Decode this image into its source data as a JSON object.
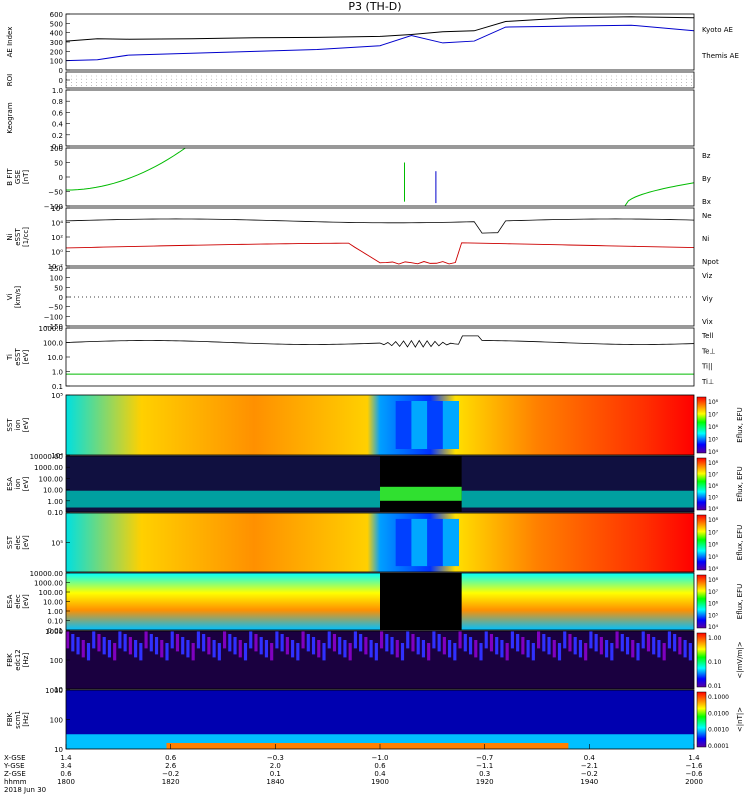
{
  "title": "P3 (TH-D)",
  "chart_data": [
    {
      "id": "ae",
      "type": "line",
      "ylabel": "AE Index",
      "ylim": [
        0,
        600
      ],
      "yticks": [
        "0",
        "100",
        "200",
        "300",
        "400",
        "500",
        "600"
      ],
      "series": [
        {
          "name": "Kyoto AE",
          "color": "#000000",
          "t": [
            0,
            0.05,
            0.1,
            0.2,
            0.3,
            0.4,
            0.5,
            0.55,
            0.6,
            0.65,
            0.7,
            0.8,
            0.9,
            1.0
          ],
          "values": [
            310,
            335,
            330,
            335,
            345,
            350,
            360,
            380,
            410,
            420,
            520,
            560,
            570,
            560
          ]
        },
        {
          "name": "Themis AE",
          "color": "#0000cc",
          "t": [
            0,
            0.05,
            0.1,
            0.2,
            0.3,
            0.4,
            0.5,
            0.55,
            0.6,
            0.65,
            0.7,
            0.8,
            0.9,
            1.0
          ],
          "values": [
            100,
            110,
            160,
            180,
            200,
            220,
            260,
            370,
            290,
            310,
            460,
            470,
            480,
            420
          ]
        }
      ]
    },
    {
      "id": "roi",
      "type": "line",
      "ylabel": "ROI",
      "yticks": [
        "0"
      ]
    },
    {
      "id": "keogram",
      "type": "line",
      "ylabel": "Keogram",
      "ylim": [
        0,
        1
      ],
      "yticks": [
        "0.0",
        "0.2",
        "0.4",
        "0.6",
        "0.8",
        "1.0"
      ]
    },
    {
      "id": "bfield",
      "type": "line",
      "ylabel": [
        "B FIT",
        "GSE",
        "[nT]"
      ],
      "ylim": [
        -100,
        100
      ],
      "yticks": [
        "−100",
        "−50",
        "0",
        "50",
        "100"
      ],
      "legend": [
        {
          "name": "Bz",
          "color": "#cc0000"
        },
        {
          "name": "By",
          "color": "#00bb00"
        },
        {
          "name": "Bx",
          "color": "#0000cc"
        }
      ]
    },
    {
      "id": "density",
      "type": "line",
      "ylabel": [
        "Ni",
        "eSST",
        "[1/cc]"
      ],
      "yticks": [
        "10⁻²",
        "10⁰",
        "10²",
        "10⁴",
        "10⁶"
      ],
      "legend": [
        {
          "name": "Ne",
          "color": "#cc0000"
        },
        {
          "name": "Ni",
          "color": "#000000"
        },
        {
          "name": "Npot",
          "color": "#0000cc"
        }
      ]
    },
    {
      "id": "velocity",
      "type": "line",
      "ylabel": [
        "Vi",
        "[km/s]"
      ],
      "ylim": [
        -150,
        150
      ],
      "yticks": [
        "−150",
        "−100",
        "−50",
        "0",
        "50",
        "100",
        "150"
      ],
      "legend": [
        {
          "name": "Viz",
          "color": "#cc0000"
        },
        {
          "name": "Viy",
          "color": "#00bb00"
        },
        {
          "name": "Vix",
          "color": "#0000cc"
        }
      ]
    },
    {
      "id": "temperature",
      "type": "line",
      "ylabel": [
        "Ti",
        "eSST",
        "[eV]"
      ],
      "yticks": [
        "0.1",
        "1.0",
        "10.0",
        "100.0",
        "1000.0"
      ],
      "legend": [
        {
          "name": "Tell",
          "color": "#000000"
        },
        {
          "name": "Te⊥",
          "color": "#cc0000"
        },
        {
          "name": "Ti||",
          "color": "#00bb00"
        },
        {
          "name": "Ti⊥",
          "color": "#0000cc"
        }
      ]
    },
    {
      "id": "ion_sst",
      "type": "heatmap",
      "ylabel": [
        "SST",
        "ion",
        "[eV]"
      ],
      "yticks": [
        "10⁴",
        "10⁵"
      ],
      "colorbar": {
        "label": "Eflux, EFU",
        "ticks": [
          "10⁴",
          "10⁵",
          "10⁶",
          "10⁷",
          "10⁸"
        ]
      }
    },
    {
      "id": "ion_esa",
      "type": "heatmap",
      "ylabel": [
        "ESA",
        "ion",
        "[eV]"
      ],
      "yticks": [
        "0.10",
        "1.00",
        "10.00",
        "100.00",
        "1000.00",
        "10000.00"
      ],
      "colorbar": {
        "label": "Eflux, EFU",
        "ticks": [
          "10⁴",
          "10⁵",
          "10⁶",
          "10⁷",
          "10⁸"
        ]
      }
    },
    {
      "id": "elec_sst",
      "type": "heatmap",
      "ylabel": [
        "SST",
        "elec",
        "[eV]"
      ],
      "yticks": [
        "10⁵"
      ],
      "colorbar": {
        "label": "Eflux, EFU",
        "ticks": [
          "10⁴",
          "10⁵",
          "10⁶",
          "10⁷",
          "10⁸"
        ]
      }
    },
    {
      "id": "elec_esa",
      "type": "heatmap",
      "ylabel": [
        "ESA",
        "elec",
        "[eV]"
      ],
      "yticks": [
        "0.01",
        "0.10",
        "1.00",
        "10.00",
        "100.00",
        "1000.00",
        "10000.00"
      ],
      "colorbar": {
        "label": "Eflux, EFU",
        "ticks": [
          "10⁴",
          "10⁵",
          "10⁶",
          "10⁷",
          "10⁸"
        ]
      }
    },
    {
      "id": "fbk_e",
      "type": "heatmap",
      "ylabel": [
        "FBK",
        "edc12",
        "[Hz]"
      ],
      "yticks": [
        "10",
        "100",
        "1000"
      ],
      "colorbar": {
        "label": "<|mV/m|>",
        "ticks": [
          "0.01",
          "0.10",
          "1.00"
        ]
      }
    },
    {
      "id": "fbk_b",
      "type": "heatmap",
      "ylabel": [
        "FBK",
        "scm1",
        "[Hz]"
      ],
      "yticks": [
        "10",
        "100",
        "1000"
      ],
      "colorbar": {
        "label": "<|nT|>",
        "ticks": [
          "0.0001",
          "0.0010",
          "0.0100",
          "0.1000"
        ]
      }
    }
  ],
  "x_axis": {
    "row_labels": [
      "X-GSE",
      "Y-GSE",
      "Z-GSE",
      "hhmm",
      "2018 Jun 30"
    ],
    "ticks": [
      {
        "x": "1.4",
        "y": "3.4",
        "z": "0.6",
        "t": "1800"
      },
      {
        "x": "0.6",
        "y": "2.6",
        "z": "−0.2",
        "t": "1820"
      },
      {
        "x": "−0.3",
        "y": "2.0",
        "z": "0.1",
        "t": "1840"
      },
      {
        "x": "−1.0",
        "y": "0.6",
        "z": "0.4",
        "t": "1900"
      },
      {
        "x": "−0.7",
        "y": "−1.1",
        "z": "0.3",
        "t": "1920"
      },
      {
        "x": "0.4",
        "y": "−2.1",
        "z": "−0.2",
        "t": "1940"
      },
      {
        "x": "1.4",
        "y": "−1.6",
        "z": "−0.6",
        "t": "2000"
      }
    ]
  }
}
